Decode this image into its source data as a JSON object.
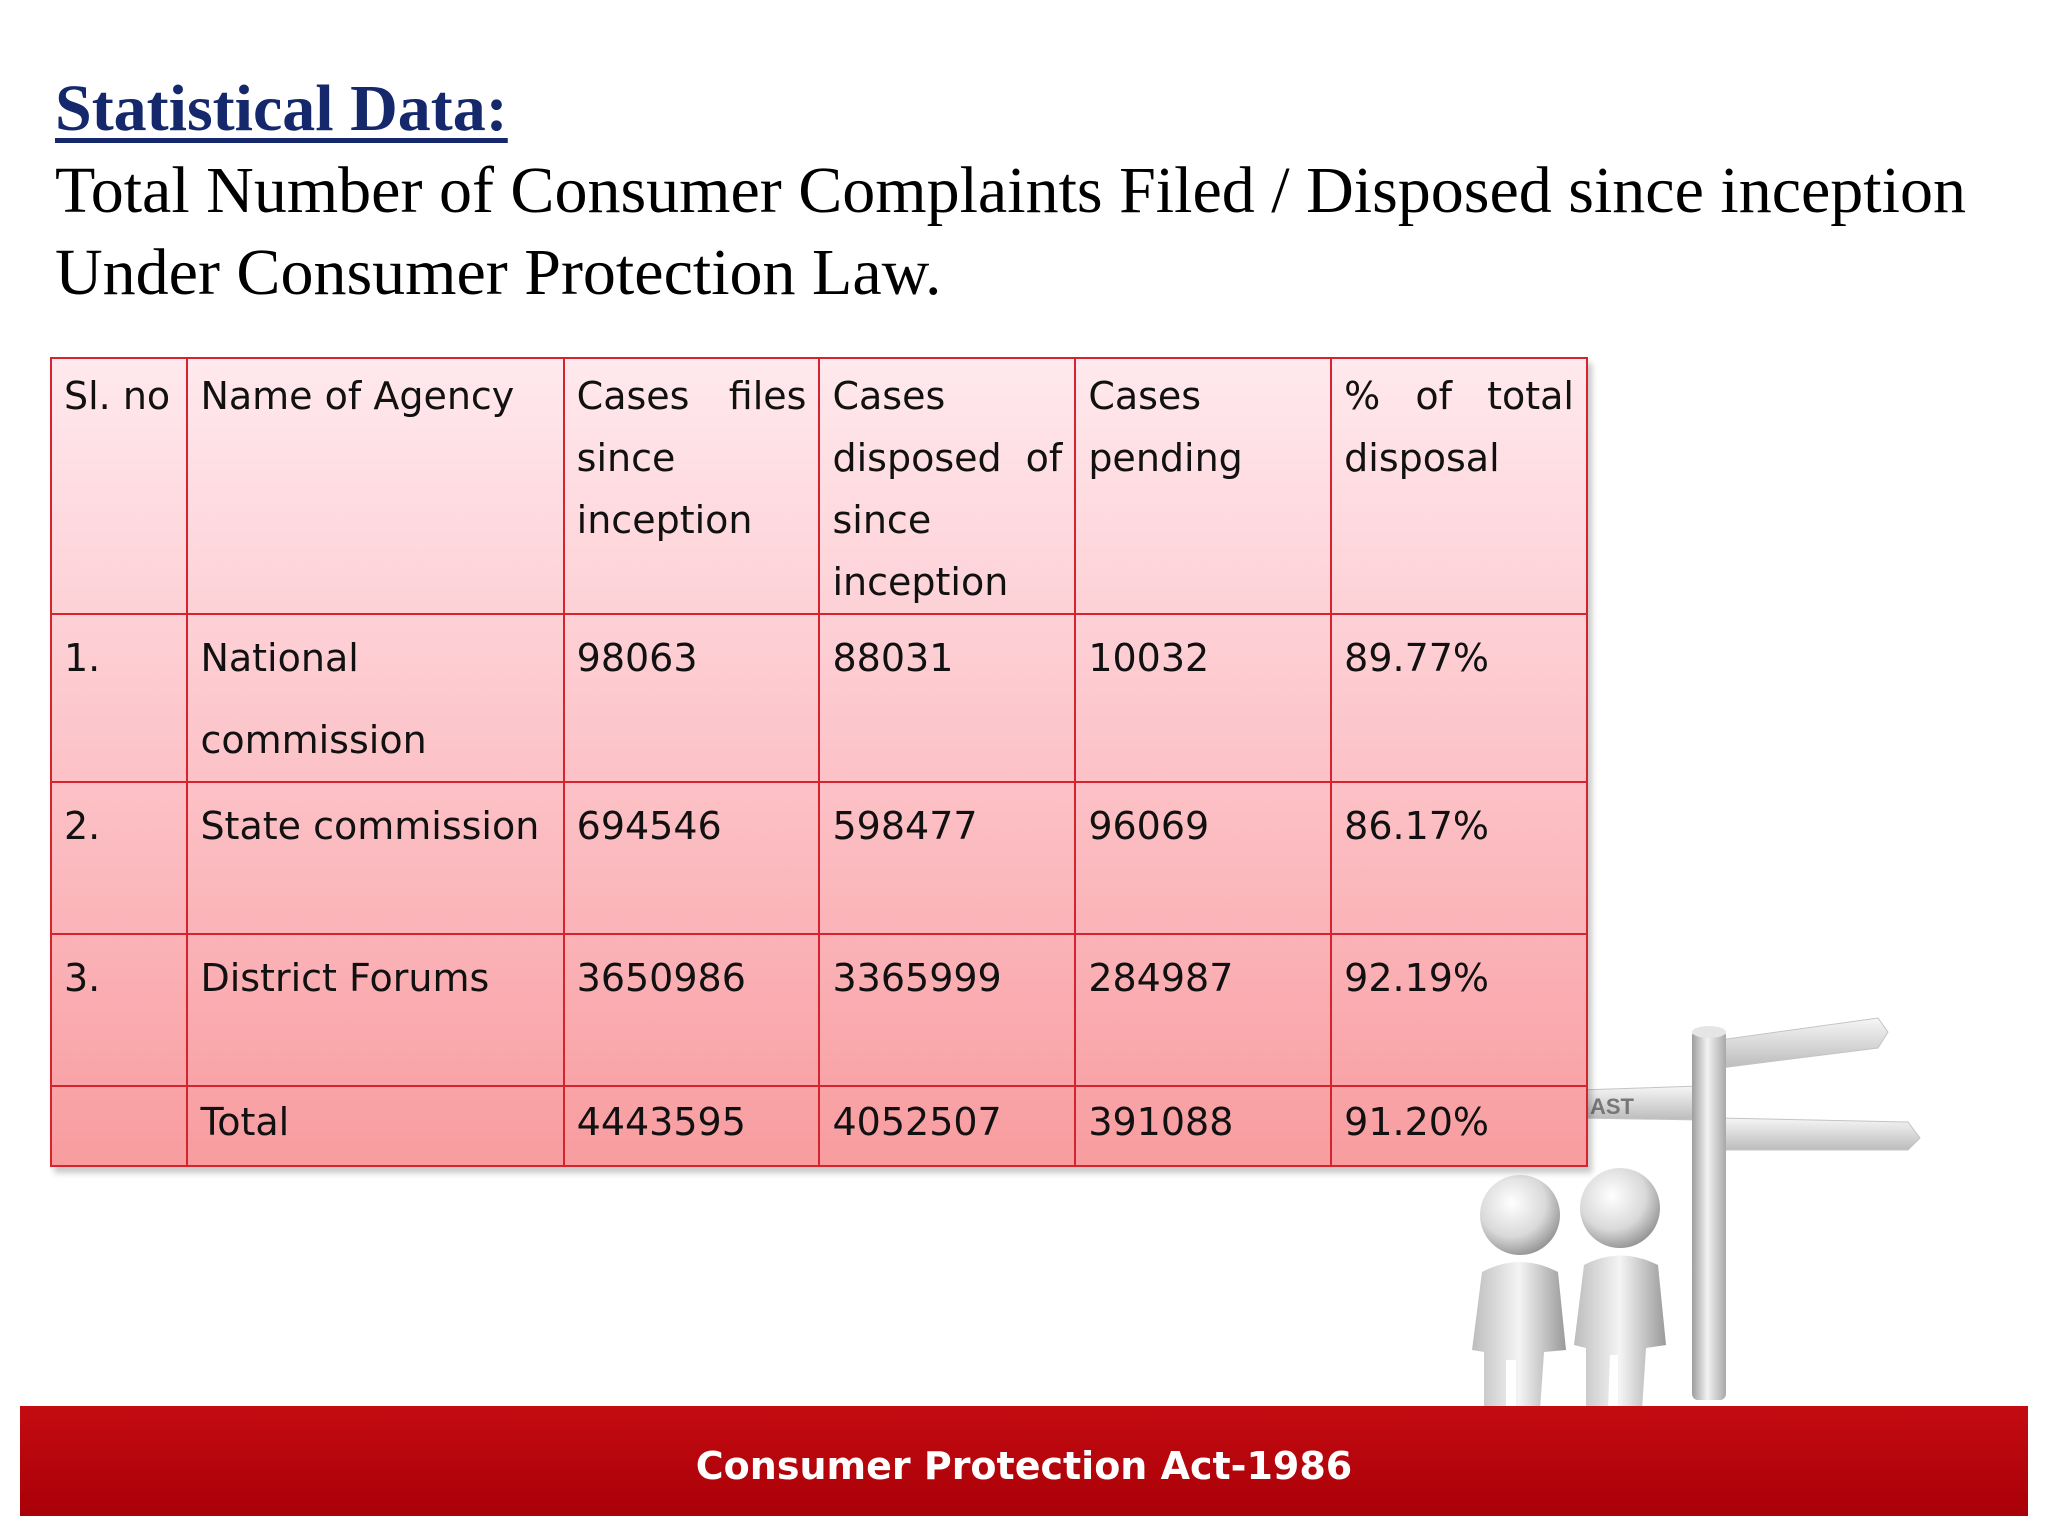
{
  "heading": "Statistical Data:",
  "subheading": {
    "line1": "Total Number of Consumer Complaints Filed / Disposed since inception",
    "line2": "Under Consumer Protection Law."
  },
  "table": {
    "headers": [
      "Sl. no",
      "Name of Agency",
      "Cases files since inception",
      "Cases disposed of since inception",
      "Cases pending",
      "% of total disposal"
    ],
    "rows": [
      {
        "sl": "1.",
        "agency": "National commission",
        "filed": "98063",
        "disposed": "88031",
        "pending": "10032",
        "pct": "89.77%"
      },
      {
        "sl": "2.",
        "agency": "State commission",
        "filed": "694546",
        "disposed": "598477",
        "pending": "96069",
        "pct": "86.17%"
      },
      {
        "sl": "3.",
        "agency": "District Forums",
        "filed": "3650986",
        "disposed": "3365999",
        "pending": "284987",
        "pct": "92.19%"
      },
      {
        "sl": "",
        "agency": "Total",
        "filed": "4443595",
        "disposed": "4052507",
        "pending": "391088",
        "pct": "91.20%"
      }
    ]
  },
  "illustration": {
    "icon": "two-figures-signpost-icon",
    "sign_text": "AST"
  },
  "footer": {
    "text": "Consumer Protection Act-1986",
    "color": "#b70008"
  },
  "colors": {
    "heading": "#14286b",
    "table_border": "#d6242e",
    "table_fill_top": "#ffe9ee",
    "table_fill_bottom": "#f89c9f"
  }
}
